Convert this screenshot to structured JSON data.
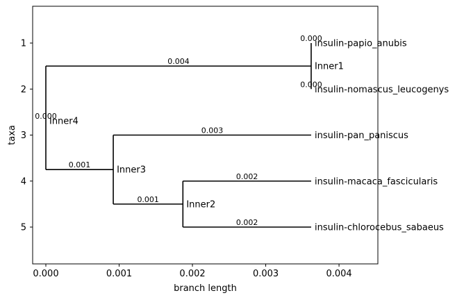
{
  "chart_data": {
    "type": "phylogenetic-tree",
    "xlabel": "branch length",
    "ylabel": "taxa",
    "xlim": [
      -0.00018,
      0.00453
    ],
    "ylim": [
      5.8,
      0.2
    ],
    "x_ticks": [
      0.0,
      0.001,
      0.002,
      0.003,
      0.004
    ],
    "x_tick_labels": [
      "0.000",
      "0.001",
      "0.002",
      "0.003",
      "0.004"
    ],
    "y_ticks": [
      1,
      2,
      3,
      4,
      5
    ],
    "y_tick_labels": [
      "1",
      "2",
      "3",
      "4",
      "5"
    ],
    "nodes": [
      {
        "id": "Inner4",
        "label": "Inner4",
        "x": 0.0,
        "y": 2.6875,
        "parent": null,
        "branch_label": "0.000"
      },
      {
        "id": "Inner1",
        "label": "Inner1",
        "x": 0.00362,
        "y": 1.5,
        "parent": "Inner4",
        "branch_label": "0.004"
      },
      {
        "id": "Inner3",
        "label": "Inner3",
        "x": 0.00092,
        "y": 3.75,
        "parent": "Inner4",
        "branch_label": "0.001"
      },
      {
        "id": "Inner2",
        "label": "Inner2",
        "x": 0.00187,
        "y": 4.5,
        "parent": "Inner3",
        "branch_label": "0.001"
      },
      {
        "id": "papio",
        "label": "insulin-papio_anubis",
        "x": 0.00362,
        "y": 1,
        "parent": "Inner1",
        "branch_label": "0.000"
      },
      {
        "id": "nomascus",
        "label": "insulin-nomascus_leucogenys",
        "x": 0.00362,
        "y": 2,
        "parent": "Inner1",
        "branch_label": "0.000"
      },
      {
        "id": "pan",
        "label": "insulin-pan_paniscus",
        "x": 0.00362,
        "y": 3,
        "parent": "Inner3",
        "branch_label": "0.003"
      },
      {
        "id": "macaca",
        "label": "insulin-macaca_fascicularis",
        "x": 0.00362,
        "y": 4,
        "parent": "Inner2",
        "branch_label": "0.002"
      },
      {
        "id": "chlorocebus",
        "label": "insulin-chlorocebus_sabaeus",
        "x": 0.00362,
        "y": 5,
        "parent": "Inner2",
        "branch_label": "0.002"
      }
    ]
  }
}
